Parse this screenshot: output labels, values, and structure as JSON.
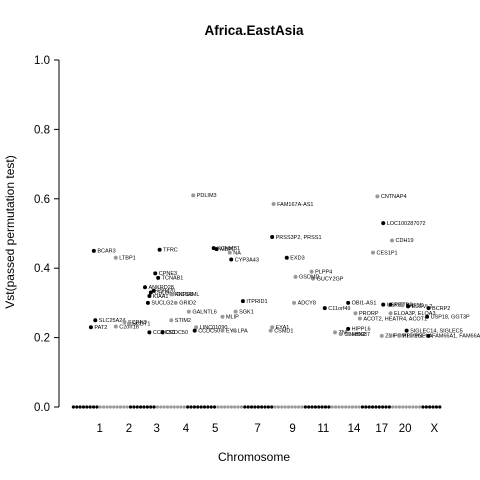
{
  "chart_data": {
    "type": "scatter",
    "title": "Africa.EastAsia",
    "xlabel": "Chromosome",
    "ylabel": "Vst(passed permutation test)",
    "ylim": [
      0,
      1
    ],
    "yticks": [
      "0.0",
      "0.2",
      "0.4",
      "0.6",
      "0.8",
      "1.0"
    ],
    "xlim": [
      0,
      23
    ],
    "chromosomes": [
      "1",
      "2",
      "3",
      "4",
      "5",
      "7",
      "9",
      "11",
      "14",
      "17",
      "20",
      "X"
    ],
    "chromosome_positions": [
      1.05,
      2.05,
      3.0,
      4.0,
      5.0,
      6.45,
      7.65,
      8.7,
      9.75,
      10.7,
      11.5,
      12.5
    ],
    "colors": {
      "odd": "#000000",
      "even": "#999999",
      "axis": "#000000"
    },
    "points": [
      {
        "label": "PDLIM3",
        "chr": 4,
        "x": 4.25,
        "y": 0.61
      },
      {
        "label": "FAM167A-AS1",
        "chr": 8,
        "x": 7.0,
        "y": 0.585
      },
      {
        "label": "CNTNAP4",
        "chr": 16,
        "x": 10.55,
        "y": 0.607
      },
      {
        "label": "LOC100287072",
        "chr": 17,
        "x": 10.75,
        "y": 0.53
      },
      {
        "label": "PRSS3P2, PRSS1",
        "chr": 7,
        "x": 6.95,
        "y": 0.49
      },
      {
        "label": "CDH19",
        "chr": 18,
        "x": 11.05,
        "y": 0.48
      },
      {
        "label": "BCAR3",
        "chr": 1,
        "x": 0.85,
        "y": 0.45
      },
      {
        "label": "LTBP1",
        "chr": 2,
        "x": 1.6,
        "y": 0.43
      },
      {
        "label": "TFRC",
        "chr": 3,
        "x": 3.1,
        "y": 0.453
      },
      {
        "label": "KCNMB1",
        "chr": 5,
        "x": 4.95,
        "y": 0.458
      },
      {
        "label": "MBPL",
        "chr": 5,
        "x": 5.05,
        "y": 0.455
      },
      {
        "label": "NA",
        "chr": 6,
        "x": 5.5,
        "y": 0.445
      },
      {
        "label": "CYP3A43",
        "chr": 7,
        "x": 5.55,
        "y": 0.425
      },
      {
        "label": "EXD3",
        "chr": 9,
        "x": 7.45,
        "y": 0.43
      },
      {
        "label": "CES1P1",
        "chr": 16,
        "x": 10.4,
        "y": 0.445
      },
      {
        "label": "CPNE3",
        "chr": 3,
        "x": 2.95,
        "y": 0.385
      },
      {
        "label": "TCNAB1",
        "chr": 3,
        "x": 3.05,
        "y": 0.372
      },
      {
        "label": "PLPP4",
        "chr": 10,
        "x": 8.3,
        "y": 0.39
      },
      {
        "label": "GUCY2GP",
        "chr": 10,
        "x": 8.35,
        "y": 0.37
      },
      {
        "label": "GSDMD",
        "chr": 8,
        "x": 7.75,
        "y": 0.375
      },
      {
        "label": "ANKRD28",
        "chr": 3,
        "x": 2.6,
        "y": 0.345
      },
      {
        "label": "PYM20",
        "chr": 3,
        "x": 2.9,
        "y": 0.335
      },
      {
        "label": "CHD9",
        "chr": 3,
        "x": 2.8,
        "y": 0.33
      },
      {
        "label": "KIAA1",
        "chr": 3,
        "x": 2.75,
        "y": 0.32
      },
      {
        "label": "RNFS3",
        "chr": 4,
        "x": 3.5,
        "y": 0.325
      },
      {
        "label": "GCSAML",
        "chr": 4,
        "x": 3.55,
        "y": 0.325
      },
      {
        "label": "SUCLG2",
        "chr": 3,
        "x": 2.7,
        "y": 0.3
      },
      {
        "label": "GRID2",
        "chr": 4,
        "x": 3.65,
        "y": 0.3
      },
      {
        "label": "ITPRID1",
        "chr": 7,
        "x": 5.95,
        "y": 0.305
      },
      {
        "label": "ADCY8",
        "chr": 8,
        "x": 7.7,
        "y": 0.3
      },
      {
        "label": "GALNTL6",
        "chr": 4,
        "x": 4.1,
        "y": 0.275
      },
      {
        "label": "SGK1",
        "chr": 6,
        "x": 5.7,
        "y": 0.275
      },
      {
        "label": "MLIP",
        "chr": 6,
        "x": 5.25,
        "y": 0.26
      },
      {
        "label": "C11orf49",
        "chr": 11,
        "x": 8.75,
        "y": 0.285
      },
      {
        "label": "OBI1-AS1",
        "chr": 13,
        "x": 9.55,
        "y": 0.3
      },
      {
        "label": "USP32",
        "chr": 17,
        "x": 10.75,
        "y": 0.295
      },
      {
        "label": "KIF7B3",
        "chr": 17,
        "x": 11.0,
        "y": 0.295
      },
      {
        "label": "PHF5D",
        "chr": 18,
        "x": 11.4,
        "y": 0.293
      },
      {
        "label": "ELOVL2",
        "chr": 19,
        "x": 11.6,
        "y": 0.29
      },
      {
        "label": "BCRP2",
        "chr": 19,
        "x": 12.3,
        "y": 0.285
      },
      {
        "label": "PRORP",
        "chr": 14,
        "x": 9.8,
        "y": 0.27
      },
      {
        "label": "ACOT2, HEATR4, ACOT1",
        "chr": 14,
        "x": 9.95,
        "y": 0.255
      },
      {
        "label": "ELOA3P, ELOA3",
        "chr": 18,
        "x": 11.0,
        "y": 0.27
      },
      {
        "label": "USP18, GGT3P",
        "chr": 21,
        "x": 12.25,
        "y": 0.26
      },
      {
        "label": "SLC25A24",
        "chr": 1,
        "x": 0.9,
        "y": 0.25
      },
      {
        "label": "SCRN3",
        "chr": 2,
        "x": 1.9,
        "y": 0.245
      },
      {
        "label": "SCDT1",
        "chr": 2,
        "x": 2.05,
        "y": 0.24
      },
      {
        "label": "STIM2",
        "chr": 4,
        "x": 3.5,
        "y": 0.25
      },
      {
        "label": "PAT2",
        "chr": 1,
        "x": 0.75,
        "y": 0.23
      },
      {
        "label": "C2orf16",
        "chr": 2,
        "x": 1.6,
        "y": 0.232
      },
      {
        "label": "LINC01090",
        "chr": 4,
        "x": 4.35,
        "y": 0.23
      },
      {
        "label": "EYA1",
        "chr": 8,
        "x": 6.95,
        "y": 0.23
      },
      {
        "label": "HIPPL6",
        "chr": 13,
        "x": 9.55,
        "y": 0.225
      },
      {
        "label": "SIGLEC14, SIGLEC5",
        "chr": 19,
        "x": 11.55,
        "y": 0.22
      },
      {
        "label": "CCDC50",
        "chr": 3,
        "x": 2.75,
        "y": 0.215
      },
      {
        "label": "CCDC50",
        "chr": 3,
        "x": 3.2,
        "y": 0.215
      },
      {
        "label": "CCDC50",
        "chr": 5,
        "x": 4.3,
        "y": 0.22
      },
      {
        "label": "EYS",
        "chr": 6,
        "x": 5.25,
        "y": 0.22
      },
      {
        "label": "LPA",
        "chr": 6,
        "x": 5.65,
        "y": 0.22
      },
      {
        "label": "CSMD1",
        "chr": 8,
        "x": 6.9,
        "y": 0.22
      },
      {
        "label": "ZNF",
        "chr": 12,
        "x": 9.1,
        "y": 0.215
      },
      {
        "label": "C8orf0937",
        "chr": 12,
        "x": 9.3,
        "y": 0.21
      },
      {
        "label": "FBN2",
        "chr": 12,
        "x": 9.55,
        "y": 0.21
      },
      {
        "label": "ZNF",
        "chr": 16,
        "x": 10.7,
        "y": 0.205
      },
      {
        "label": "PPM1G",
        "chr": 18,
        "x": 11.0,
        "y": 0.205
      },
      {
        "label": "PPM1GL",
        "chr": 18,
        "x": 11.3,
        "y": 0.205
      },
      {
        "label": "PNPLA",
        "chr": 20,
        "x": 11.7,
        "y": 0.205
      },
      {
        "label": "FAM66A1, FAM66A2",
        "chr": 21,
        "x": 12.3,
        "y": 0.205
      }
    ]
  }
}
